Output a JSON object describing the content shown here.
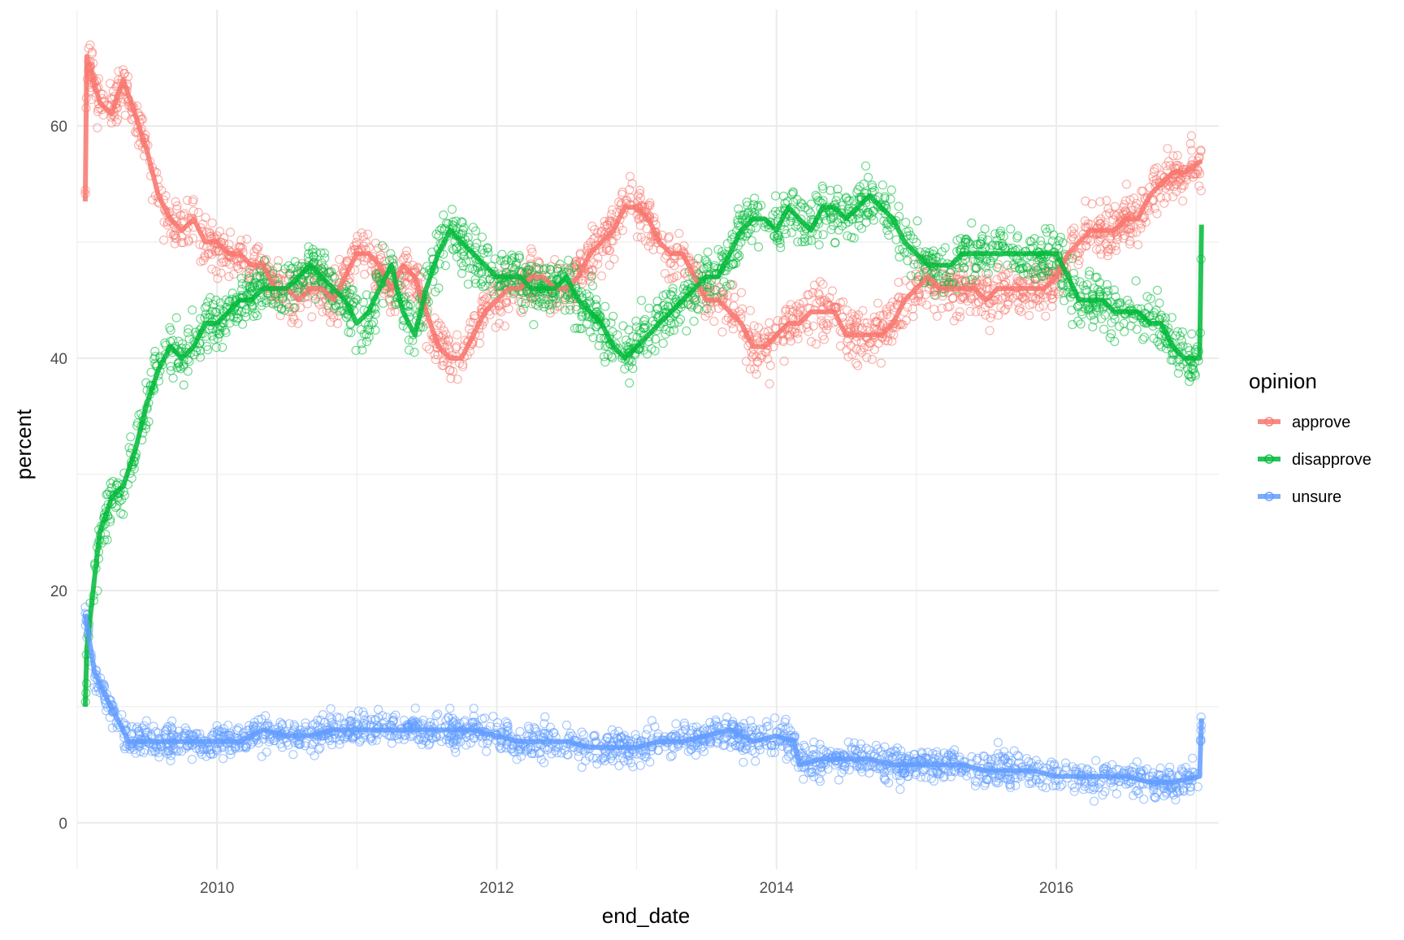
{
  "chart_data": {
    "type": "scatter",
    "title": "",
    "xlabel": "end_date",
    "ylabel": "percent",
    "xlim": [
      "2009-01-01",
      "2017-03-01"
    ],
    "ylim": [
      -4,
      70
    ],
    "x_ticks": [
      "2010",
      "2012",
      "2014",
      "2016"
    ],
    "y_ticks": [
      "0",
      "20",
      "40",
      "60"
    ],
    "grid": true,
    "legend": {
      "title": "opinion",
      "position": "right"
    },
    "overlay": "smoothed trend line per series drawn over the individual poll points",
    "series": [
      {
        "name": "approve",
        "color": "#F8766D",
        "trend": [
          [
            "2009-01-22",
            53.5
          ],
          [
            "2009-01-26",
            66
          ],
          [
            "2009-03-01",
            62
          ],
          [
            "2009-04-01",
            61
          ],
          [
            "2009-05-01",
            64
          ],
          [
            "2009-06-01",
            61
          ],
          [
            "2009-07-01",
            58
          ],
          [
            "2009-08-01",
            54
          ],
          [
            "2009-09-01",
            52
          ],
          [
            "2009-10-01",
            51
          ],
          [
            "2009-11-01",
            52
          ],
          [
            "2009-12-01",
            50
          ],
          [
            "2010-01-01",
            50
          ],
          [
            "2010-02-01",
            49
          ],
          [
            "2010-03-01",
            49
          ],
          [
            "2010-04-01",
            48
          ],
          [
            "2010-05-01",
            48
          ],
          [
            "2010-06-01",
            46
          ],
          [
            "2010-07-01",
            46
          ],
          [
            "2010-08-01",
            45
          ],
          [
            "2010-09-01",
            46
          ],
          [
            "2010-10-01",
            46
          ],
          [
            "2010-11-01",
            45
          ],
          [
            "2010-12-01",
            47
          ],
          [
            "2011-01-01",
            49
          ],
          [
            "2011-02-01",
            49
          ],
          [
            "2011-03-01",
            48
          ],
          [
            "2011-04-01",
            46
          ],
          [
            "2011-05-01",
            48
          ],
          [
            "2011-06-01",
            47
          ],
          [
            "2011-07-01",
            44
          ],
          [
            "2011-08-01",
            41
          ],
          [
            "2011-09-01",
            40
          ],
          [
            "2011-10-01",
            40
          ],
          [
            "2011-11-01",
            42
          ],
          [
            "2011-12-01",
            44
          ],
          [
            "2012-01-01",
            45
          ],
          [
            "2012-02-01",
            46
          ],
          [
            "2012-03-01",
            46
          ],
          [
            "2012-04-01",
            47
          ],
          [
            "2012-05-01",
            47
          ],
          [
            "2012-06-01",
            46
          ],
          [
            "2012-07-01",
            46
          ],
          [
            "2012-08-01",
            47
          ],
          [
            "2012-09-01",
            49
          ],
          [
            "2012-10-01",
            50
          ],
          [
            "2012-11-01",
            51
          ],
          [
            "2012-12-01",
            53
          ],
          [
            "2013-01-01",
            53
          ],
          [
            "2013-02-01",
            52
          ],
          [
            "2013-03-01",
            50
          ],
          [
            "2013-04-01",
            49
          ],
          [
            "2013-05-01",
            49
          ],
          [
            "2013-06-01",
            47
          ],
          [
            "2013-07-01",
            45
          ],
          [
            "2013-08-01",
            45
          ],
          [
            "2013-09-01",
            44
          ],
          [
            "2013-10-01",
            43
          ],
          [
            "2013-11-01",
            41
          ],
          [
            "2013-12-01",
            41
          ],
          [
            "2014-01-01",
            42
          ],
          [
            "2014-02-01",
            43
          ],
          [
            "2014-03-01",
            43
          ],
          [
            "2014-04-01",
            44
          ],
          [
            "2014-05-01",
            44
          ],
          [
            "2014-06-01",
            44
          ],
          [
            "2014-07-01",
            42
          ],
          [
            "2014-08-01",
            42
          ],
          [
            "2014-09-01",
            42
          ],
          [
            "2014-10-01",
            42
          ],
          [
            "2014-11-01",
            43
          ],
          [
            "2014-12-01",
            45
          ],
          [
            "2015-01-01",
            46
          ],
          [
            "2015-02-01",
            47
          ],
          [
            "2015-03-01",
            46
          ],
          [
            "2015-04-01",
            46
          ],
          [
            "2015-05-01",
            46
          ],
          [
            "2015-06-01",
            46
          ],
          [
            "2015-07-01",
            45
          ],
          [
            "2015-08-01",
            46
          ],
          [
            "2015-09-01",
            46
          ],
          [
            "2015-10-01",
            46
          ],
          [
            "2015-11-01",
            46
          ],
          [
            "2015-12-01",
            46
          ],
          [
            "2016-01-01",
            47
          ],
          [
            "2016-02-01",
            49
          ],
          [
            "2016-03-01",
            50
          ],
          [
            "2016-04-01",
            51
          ],
          [
            "2016-05-01",
            51
          ],
          [
            "2016-06-01",
            51
          ],
          [
            "2016-07-01",
            52
          ],
          [
            "2016-08-01",
            52
          ],
          [
            "2016-09-01",
            54
          ],
          [
            "2016-10-01",
            55
          ],
          [
            "2016-11-01",
            56
          ],
          [
            "2016-12-01",
            56
          ],
          [
            "2017-01-15",
            57
          ]
        ]
      },
      {
        "name": "disapprove",
        "color": "#00BA38",
        "trend": [
          [
            "2009-01-22",
            10
          ],
          [
            "2009-01-26",
            15
          ],
          [
            "2009-02-15",
            21
          ],
          [
            "2009-03-01",
            25
          ],
          [
            "2009-04-01",
            28
          ],
          [
            "2009-05-01",
            29
          ],
          [
            "2009-06-01",
            32
          ],
          [
            "2009-07-01",
            36
          ],
          [
            "2009-08-01",
            39
          ],
          [
            "2009-09-01",
            41
          ],
          [
            "2009-10-01",
            40
          ],
          [
            "2009-11-01",
            41
          ],
          [
            "2009-12-01",
            43
          ],
          [
            "2010-01-01",
            43
          ],
          [
            "2010-02-01",
            44
          ],
          [
            "2010-03-01",
            45
          ],
          [
            "2010-04-01",
            45
          ],
          [
            "2010-05-01",
            46
          ],
          [
            "2010-06-01",
            46
          ],
          [
            "2010-07-01",
            46
          ],
          [
            "2010-08-01",
            47
          ],
          [
            "2010-09-01",
            48
          ],
          [
            "2010-10-01",
            47
          ],
          [
            "2010-11-01",
            46
          ],
          [
            "2010-12-01",
            45
          ],
          [
            "2011-01-01",
            43
          ],
          [
            "2011-02-01",
            44
          ],
          [
            "2011-03-01",
            46
          ],
          [
            "2011-04-01",
            48
          ],
          [
            "2011-05-01",
            44
          ],
          [
            "2011-06-01",
            42
          ],
          [
            "2011-07-01",
            46
          ],
          [
            "2011-08-01",
            49
          ],
          [
            "2011-09-01",
            51
          ],
          [
            "2011-10-01",
            50
          ],
          [
            "2011-11-01",
            49
          ],
          [
            "2011-12-01",
            48
          ],
          [
            "2012-01-01",
            47
          ],
          [
            "2012-02-01",
            47
          ],
          [
            "2012-03-01",
            47
          ],
          [
            "2012-04-01",
            46
          ],
          [
            "2012-05-01",
            46
          ],
          [
            "2012-06-01",
            46
          ],
          [
            "2012-07-01",
            47
          ],
          [
            "2012-08-01",
            45
          ],
          [
            "2012-09-01",
            44
          ],
          [
            "2012-10-01",
            43
          ],
          [
            "2012-11-01",
            41
          ],
          [
            "2012-12-01",
            40
          ],
          [
            "2013-01-01",
            41
          ],
          [
            "2013-02-01",
            42
          ],
          [
            "2013-03-01",
            43
          ],
          [
            "2013-04-01",
            44
          ],
          [
            "2013-05-01",
            45
          ],
          [
            "2013-06-01",
            46
          ],
          [
            "2013-07-01",
            47
          ],
          [
            "2013-08-01",
            47
          ],
          [
            "2013-09-01",
            49
          ],
          [
            "2013-10-01",
            51
          ],
          [
            "2013-11-01",
            52
          ],
          [
            "2013-12-01",
            52
          ],
          [
            "2014-01-01",
            51
          ],
          [
            "2014-02-01",
            53
          ],
          [
            "2014-03-01",
            52
          ],
          [
            "2014-04-01",
            51
          ],
          [
            "2014-05-01",
            53
          ],
          [
            "2014-06-01",
            53
          ],
          [
            "2014-07-01",
            52
          ],
          [
            "2014-08-01",
            53
          ],
          [
            "2014-09-01",
            54
          ],
          [
            "2014-10-01",
            53
          ],
          [
            "2014-11-01",
            52
          ],
          [
            "2014-12-01",
            50
          ],
          [
            "2015-01-01",
            49
          ],
          [
            "2015-02-01",
            48
          ],
          [
            "2015-03-01",
            48
          ],
          [
            "2015-04-01",
            48
          ],
          [
            "2015-05-01",
            49
          ],
          [
            "2015-06-01",
            49
          ],
          [
            "2015-07-01",
            49
          ],
          [
            "2015-08-01",
            49
          ],
          [
            "2015-09-01",
            49
          ],
          [
            "2015-10-01",
            49
          ],
          [
            "2015-11-01",
            49
          ],
          [
            "2015-12-01",
            49
          ],
          [
            "2016-01-01",
            49
          ],
          [
            "2016-02-01",
            47
          ],
          [
            "2016-03-01",
            45
          ],
          [
            "2016-04-01",
            45
          ],
          [
            "2016-05-01",
            45
          ],
          [
            "2016-06-01",
            44
          ],
          [
            "2016-07-01",
            44
          ],
          [
            "2016-08-01",
            44
          ],
          [
            "2016-09-01",
            43
          ],
          [
            "2016-10-01",
            43
          ],
          [
            "2016-11-01",
            41
          ],
          [
            "2016-12-01",
            40
          ],
          [
            "2017-01-10",
            40
          ],
          [
            "2017-01-15",
            51.5
          ]
        ]
      },
      {
        "name": "unsure",
        "color": "#619CFF",
        "trend": [
          [
            "2009-01-22",
            18
          ],
          [
            "2009-02-15",
            13
          ],
          [
            "2009-03-15",
            11
          ],
          [
            "2009-04-15",
            9
          ],
          [
            "2009-05-15",
            7
          ],
          [
            "2009-06-15",
            7
          ],
          [
            "2009-08-01",
            7
          ],
          [
            "2009-09-01",
            7
          ],
          [
            "2009-11-01",
            7
          ],
          [
            "2010-01-01",
            7
          ],
          [
            "2010-03-01",
            7
          ],
          [
            "2010-05-01",
            8
          ],
          [
            "2010-07-01",
            7.5
          ],
          [
            "2010-09-01",
            7.5
          ],
          [
            "2010-11-01",
            8
          ],
          [
            "2011-01-01",
            8
          ],
          [
            "2011-03-01",
            8
          ],
          [
            "2011-05-01",
            8
          ],
          [
            "2011-07-01",
            8
          ],
          [
            "2011-09-01",
            8
          ],
          [
            "2011-11-01",
            8
          ],
          [
            "2012-01-01",
            7.5
          ],
          [
            "2012-03-01",
            7
          ],
          [
            "2012-05-01",
            7
          ],
          [
            "2012-07-01",
            7
          ],
          [
            "2012-09-01",
            6.5
          ],
          [
            "2012-11-01",
            6.5
          ],
          [
            "2013-01-01",
            6.5
          ],
          [
            "2013-03-01",
            7
          ],
          [
            "2013-05-01",
            7
          ],
          [
            "2013-07-01",
            7.5
          ],
          [
            "2013-09-01",
            8
          ],
          [
            "2013-11-01",
            7
          ],
          [
            "2014-01-01",
            7.5
          ],
          [
            "2014-02-15",
            7
          ],
          [
            "2014-03-01",
            5
          ],
          [
            "2014-05-01",
            5.5
          ],
          [
            "2014-07-01",
            5.5
          ],
          [
            "2014-09-01",
            5.5
          ],
          [
            "2014-11-01",
            5
          ],
          [
            "2015-01-01",
            5
          ],
          [
            "2015-03-01",
            5
          ],
          [
            "2015-05-01",
            5
          ],
          [
            "2015-07-01",
            4.5
          ],
          [
            "2015-09-01",
            4.5
          ],
          [
            "2015-11-01",
            4.5
          ],
          [
            "2016-01-01",
            4
          ],
          [
            "2016-03-01",
            4
          ],
          [
            "2016-05-01",
            4
          ],
          [
            "2016-07-01",
            4
          ],
          [
            "2016-09-01",
            3.5
          ],
          [
            "2016-11-01",
            3.5
          ],
          [
            "2017-01-10",
            4
          ],
          [
            "2017-01-15",
            9
          ]
        ]
      }
    ]
  }
}
